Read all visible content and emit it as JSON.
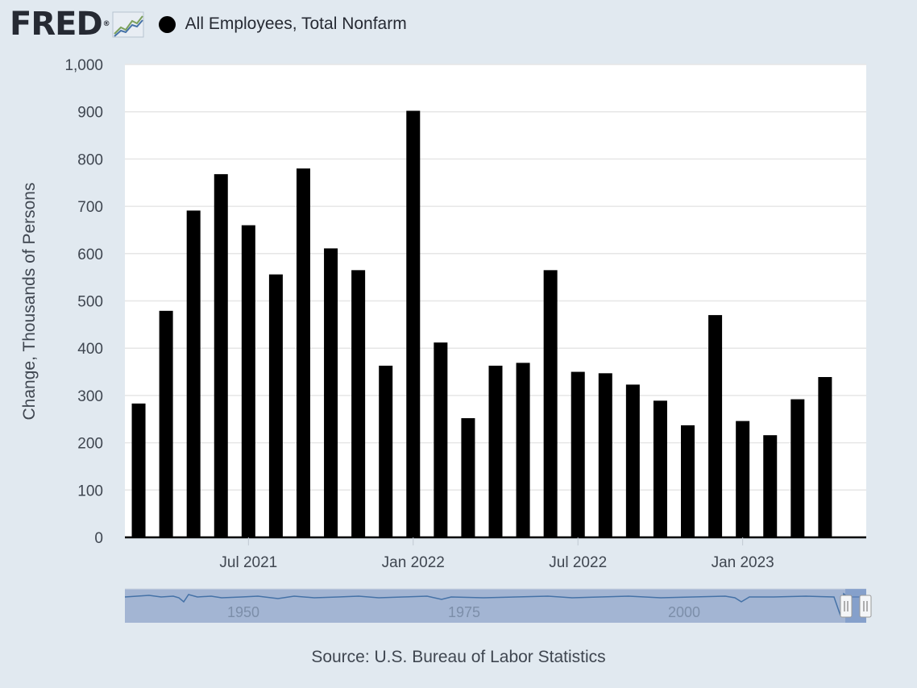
{
  "header": {
    "logo_text": "FRED",
    "logo_icon": "chart-line-icon",
    "legend_label": "All Employees, Total Nonfarm",
    "legend_color": "#000000"
  },
  "chart_data": {
    "type": "bar",
    "ylabel": "Change, Thousands of Persons",
    "ylim": [
      0,
      1000
    ],
    "y_ticks": [
      0,
      100,
      200,
      300,
      400,
      500,
      600,
      700,
      800,
      900,
      1000
    ],
    "y_tick_labels": [
      "0",
      "100",
      "200",
      "300",
      "400",
      "500",
      "600",
      "700",
      "800",
      "900",
      "1,000"
    ],
    "categories": [
      "2021-03",
      "2021-04",
      "2021-05",
      "2021-06",
      "2021-07",
      "2021-08",
      "2021-09",
      "2021-10",
      "2021-11",
      "2021-12",
      "2022-01",
      "2022-02",
      "2022-03",
      "2022-04",
      "2022-05",
      "2022-06",
      "2022-07",
      "2022-08",
      "2022-09",
      "2022-10",
      "2022-11",
      "2022-12",
      "2023-01",
      "2023-02",
      "2023-03",
      "2023-04",
      "2023-05"
    ],
    "values": [
      283,
      479,
      691,
      768,
      660,
      556,
      780,
      611,
      565,
      363,
      902,
      412,
      252,
      363,
      369,
      565,
      350,
      347,
      323,
      289,
      237,
      470,
      246,
      216,
      292,
      339,
      0
    ],
    "x_tick_labels": [
      {
        "category": "2021-07",
        "label": "Jul 2021"
      },
      {
        "category": "2022-01",
        "label": "Jan 2022"
      },
      {
        "category": "2022-07",
        "label": "Jul 2022"
      },
      {
        "category": "2023-01",
        "label": "Jan 2023"
      }
    ],
    "bar_color": "#000000",
    "grid": true
  },
  "navigator": {
    "labels": [
      "1950",
      "1975",
      "2000"
    ]
  },
  "source": "Source: U.S. Bureau of Labor Statistics"
}
